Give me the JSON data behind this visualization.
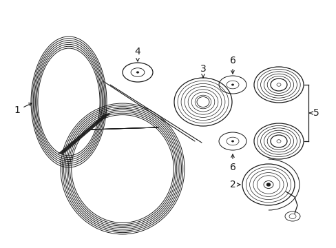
{
  "bg_color": "#ffffff",
  "line_color": "#1a1a1a",
  "fig_width": 4.89,
  "fig_height": 3.6,
  "dpi": 100,
  "belt_lw": 0.8,
  "pulley_lw": 0.9,
  "label_fontsize": 10,
  "arrow_lw": 0.8
}
